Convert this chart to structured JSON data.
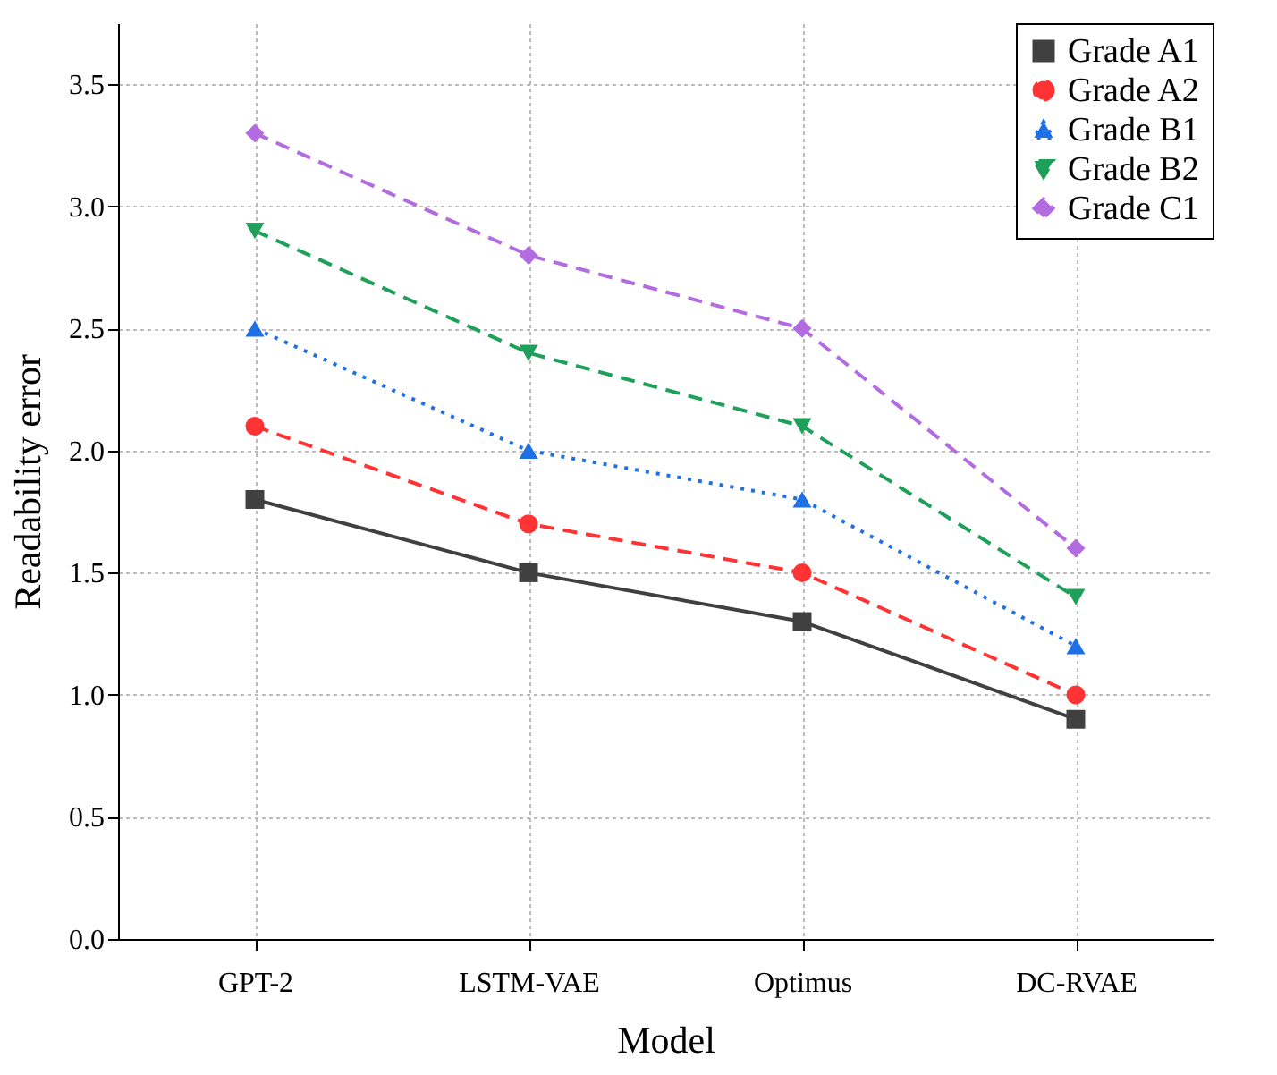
{
  "chart_data": {
    "type": "line",
    "xlabel": "Model",
    "ylabel": "Readability error",
    "categories": [
      "GPT-2",
      "LSTM-VAE",
      "Optimus",
      "DC-RVAE"
    ],
    "series": [
      {
        "name": "Grade A1",
        "color": "#404040",
        "marker": "square",
        "line_style": "solid",
        "values": [
          1.8,
          1.5,
          1.3,
          0.9
        ]
      },
      {
        "name": "Grade A2",
        "color": "#ff3333",
        "marker": "circle",
        "line_style": "dashed",
        "values": [
          2.1,
          1.7,
          1.5,
          1.0
        ]
      },
      {
        "name": "Grade B1",
        "color": "#1f6fe5",
        "marker": "triangle",
        "line_style": "dotted",
        "values": [
          2.5,
          2.0,
          1.8,
          1.2
        ]
      },
      {
        "name": "Grade B2",
        "color": "#1fa05a",
        "marker": "triangle-down",
        "line_style": "dashed",
        "values": [
          2.9,
          2.4,
          2.1,
          1.4
        ]
      },
      {
        "name": "Grade C1",
        "color": "#b36be0",
        "marker": "diamond",
        "line_style": "dashed",
        "values": [
          3.3,
          2.8,
          2.5,
          1.6
        ]
      }
    ],
    "ylim": [
      0,
      3.75
    ],
    "yticks": [
      {
        "value": 0,
        "label": "0.0"
      },
      0.5,
      {
        "value": 1,
        "label": "1.0"
      },
      1.5,
      {
        "value": 2,
        "label": "2.0"
      },
      2.5,
      {
        "value": 3,
        "label": "3.0"
      },
      3.5
    ],
    "grid": true,
    "legend": "top right"
  }
}
